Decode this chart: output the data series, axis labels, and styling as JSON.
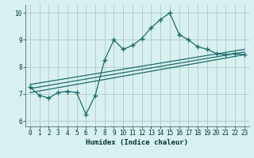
{
  "xlabel": "Humidex (Indice chaleur)",
  "background_color": "#d8f0f0",
  "grid_color": "#b0c8c8",
  "line_color": "#1a6b6b",
  "xlim": [
    -0.5,
    23.5
  ],
  "ylim": [
    5.8,
    10.3
  ],
  "xticks": [
    0,
    1,
    2,
    3,
    4,
    5,
    6,
    7,
    8,
    9,
    10,
    11,
    12,
    13,
    14,
    15,
    16,
    17,
    18,
    19,
    20,
    21,
    22,
    23
  ],
  "yticks": [
    6,
    7,
    8,
    9,
    10
  ],
  "main_x": [
    0,
    1,
    2,
    3,
    4,
    5,
    6,
    7,
    8,
    9,
    10,
    11,
    12,
    13,
    14,
    15,
    16,
    17,
    18,
    19,
    20,
    21,
    22,
    23
  ],
  "main_y": [
    7.25,
    6.95,
    6.85,
    7.05,
    7.1,
    7.05,
    6.25,
    6.95,
    8.25,
    9.0,
    8.65,
    8.8,
    9.05,
    9.45,
    9.75,
    10.0,
    9.2,
    9.0,
    8.75,
    8.65,
    8.5,
    8.45,
    8.5,
    8.45
  ],
  "reg_lines": [
    {
      "x": [
        0,
        23
      ],
      "y": [
        7.05,
        8.45
      ]
    },
    {
      "x": [
        0,
        23
      ],
      "y": [
        7.2,
        8.55
      ]
    },
    {
      "x": [
        0,
        23
      ],
      "y": [
        7.35,
        8.65
      ]
    }
  ]
}
